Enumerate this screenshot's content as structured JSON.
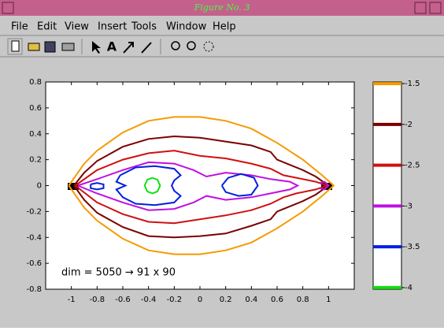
{
  "window": {
    "title": "Figure No. 3",
    "menu": [
      "File",
      "Edit",
      "View",
      "Insert",
      "Tools",
      "Window",
      "Help"
    ]
  },
  "chart_data": {
    "type": "contour",
    "xlim": [
      -1.2,
      1.2
    ],
    "ylim": [
      -0.8,
      0.8
    ],
    "xticks": [
      -1,
      -0.8,
      -0.6,
      -0.4,
      -0.2,
      0,
      0.2,
      0.4,
      0.6,
      0.8,
      1
    ],
    "yticks": [
      -0.8,
      -0.6,
      -0.4,
      -0.2,
      0,
      0.2,
      0.4,
      0.6,
      0.8
    ],
    "grid": false,
    "annotation": "dim = 5050 → 91 x 90",
    "series": [
      {
        "color": "#f59a00",
        "x": [
          -1.02,
          -0.9,
          -0.8,
          -0.6,
          -0.4,
          -0.2,
          0,
          0.2,
          0.4,
          0.6,
          0.8,
          0.95,
          1.04,
          0.95,
          0.8,
          0.6,
          0.4,
          0.2,
          0,
          -0.2,
          -0.4,
          -0.6,
          -0.8,
          -0.9,
          -1.02
        ],
        "y": [
          0,
          0.17,
          0.27,
          0.41,
          0.5,
          0.53,
          0.53,
          0.5,
          0.44,
          0.33,
          0.2,
          0.08,
          0,
          -0.08,
          -0.2,
          -0.33,
          -0.44,
          -0.5,
          -0.53,
          -0.53,
          -0.5,
          -0.41,
          -0.27,
          -0.17,
          0
        ]
      },
      {
        "color": "#7a0000",
        "x": [
          -0.98,
          -0.9,
          -0.8,
          -0.6,
          -0.4,
          -0.2,
          0,
          0.2,
          0.4,
          0.55,
          0.6,
          0.7,
          0.8,
          0.9,
          1.0,
          0.9,
          0.8,
          0.7,
          0.6,
          0.55,
          0.4,
          0.2,
          0,
          -0.2,
          -0.4,
          -0.6,
          -0.8,
          -0.9,
          -0.98
        ],
        "y": [
          0,
          0.1,
          0.19,
          0.3,
          0.36,
          0.38,
          0.37,
          0.34,
          0.31,
          0.26,
          0.2,
          0.16,
          0.12,
          0.07,
          0,
          -0.07,
          -0.12,
          -0.16,
          -0.2,
          -0.26,
          -0.31,
          -0.37,
          -0.39,
          -0.4,
          -0.39,
          -0.32,
          -0.21,
          -0.11,
          0
        ]
      },
      {
        "color": "#d01010",
        "x": [
          -0.97,
          -0.8,
          -0.6,
          -0.4,
          -0.2,
          0,
          0.2,
          0.4,
          0.55,
          0.65,
          0.75,
          0.9,
          0.99,
          0.9,
          0.75,
          0.65,
          0.55,
          0.4,
          0.2,
          0,
          -0.2,
          -0.4,
          -0.6,
          -0.8,
          -0.97
        ],
        "y": [
          0,
          0.12,
          0.2,
          0.25,
          0.27,
          0.23,
          0.21,
          0.17,
          0.13,
          0.08,
          0.06,
          0.03,
          0,
          -0.03,
          -0.06,
          -0.09,
          -0.14,
          -0.19,
          -0.23,
          -0.26,
          -0.29,
          -0.28,
          -0.22,
          -0.13,
          0
        ]
      },
      {
        "color": "#c010e0",
        "x": [
          -0.95,
          -0.8,
          -0.6,
          -0.4,
          -0.2,
          -0.05,
          0.05,
          0.2,
          0.4,
          0.55,
          0.7,
          0.76,
          0.7,
          0.55,
          0.4,
          0.2,
          0.05,
          -0.05,
          -0.2,
          -0.4,
          -0.6,
          -0.8,
          -0.95,
          null,
          0.93,
          0.97,
          1.0,
          0.97,
          0.93
        ],
        "y": [
          0,
          0.05,
          0.12,
          0.18,
          0.17,
          0.12,
          0.07,
          0.1,
          0.08,
          0.05,
          0.03,
          0,
          -0.03,
          -0.06,
          -0.09,
          -0.11,
          -0.08,
          -0.13,
          -0.18,
          -0.19,
          -0.13,
          -0.06,
          0,
          null,
          0.02,
          0.03,
          0,
          -0.03,
          -0.02
        ]
      },
      {
        "color": "#0020e0",
        "x": [
          -0.62,
          -0.5,
          -0.35,
          -0.2,
          -0.15,
          -0.2,
          -0.22,
          -0.2,
          -0.15,
          -0.2,
          -0.35,
          -0.5,
          -0.6,
          -0.65,
          -0.58,
          -0.65,
          -0.62,
          null,
          -0.85,
          -0.8,
          -0.75,
          -0.75,
          -0.8,
          -0.85,
          -0.85,
          null,
          0.17,
          0.22,
          0.32,
          0.42,
          0.45,
          0.4,
          0.3,
          0.2,
          0.17
        ],
        "y": [
          0.08,
          0.14,
          0.15,
          0.13,
          0.08,
          0.04,
          0,
          -0.04,
          -0.08,
          -0.13,
          -0.15,
          -0.14,
          -0.09,
          -0.03,
          0,
          0.03,
          0.08,
          null,
          0.01,
          0.02,
          0.01,
          -0.02,
          -0.03,
          -0.02,
          0.01,
          null,
          0,
          0.06,
          0.09,
          0.06,
          0,
          -0.07,
          -0.08,
          -0.05,
          0
        ]
      },
      {
        "color": "#10e010",
        "x": [
          -0.37,
          -0.33,
          -0.31,
          -0.33,
          -0.37,
          -0.41,
          -0.43,
          -0.41,
          -0.37
        ],
        "y": [
          0.06,
          0.045,
          0,
          -0.045,
          -0.06,
          -0.045,
          0,
          0.045,
          0.06
        ]
      }
    ],
    "colorbar": {
      "ylim": [
        -4.02,
        -1.48
      ],
      "ticks": [
        -1.5,
        -2,
        -2.5,
        -3,
        -3.5,
        -4
      ]
    }
  }
}
